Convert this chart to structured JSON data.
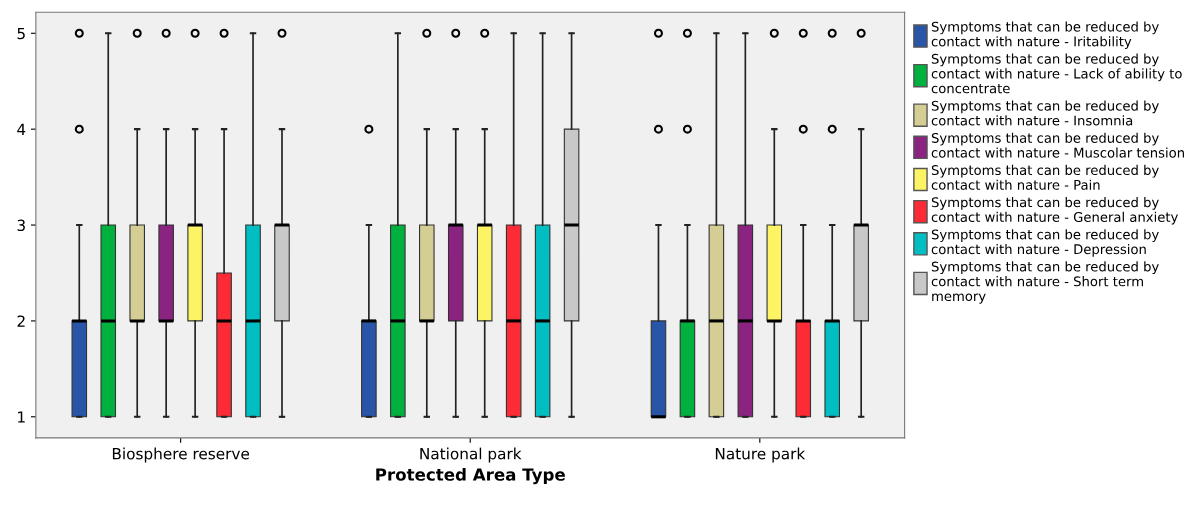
{
  "chart_data": {
    "type": "box",
    "xlabel": "Protected Area Type",
    "categories": [
      "Biosphere reserve",
      "National park",
      "Nature park"
    ],
    "ylim": [
      0.78,
      5.22
    ],
    "yticks": [
      1,
      2,
      3,
      4,
      5
    ],
    "grid": false,
    "legend": "right",
    "series": [
      {
        "name": "Symptoms that can be reduced by\ncontact with nature - Iritability",
        "color": "#2955a8",
        "boxes": [
          {
            "low": 1,
            "q1": 1,
            "median": 2,
            "q3": 2,
            "high": 3,
            "outliers": [
              4,
              5
            ]
          },
          {
            "low": 1,
            "q1": 1,
            "median": 2,
            "q3": 2,
            "high": 3,
            "outliers": [
              4
            ]
          },
          {
            "low": 1,
            "q1": 1,
            "median": 1,
            "q3": 2,
            "high": 3,
            "outliers": [
              4,
              5
            ]
          }
        ]
      },
      {
        "name": "Symptoms that can be reduced by\ncontact with nature - Lack of ability to\nconcentrate",
        "color": "#00b140",
        "boxes": [
          {
            "low": 1,
            "q1": 1,
            "median": 2,
            "q3": 3,
            "high": 5
          },
          {
            "low": 1,
            "q1": 1,
            "median": 2,
            "q3": 3,
            "high": 5
          },
          {
            "low": 1,
            "q1": 1,
            "median": 2,
            "q3": 2,
            "high": 3,
            "outliers": [
              4,
              5
            ]
          }
        ]
      },
      {
        "name": "Symptoms that can be reduced by\ncontact with nature - Insomnia",
        "color": "#d4ce94",
        "boxes": [
          {
            "low": 1,
            "q1": 2,
            "median": 2,
            "q3": 3,
            "high": 4,
            "outliers": [
              5
            ]
          },
          {
            "low": 1,
            "q1": 2,
            "median": 2,
            "q3": 3,
            "high": 4,
            "outliers": [
              5
            ]
          },
          {
            "low": 1,
            "q1": 1,
            "median": 2,
            "q3": 3,
            "high": 5
          }
        ]
      },
      {
        "name": "Symptoms that can be reduced by\ncontact with nature - Muscolar tension",
        "color": "#8a2480",
        "boxes": [
          {
            "low": 1,
            "q1": 2,
            "median": 2,
            "q3": 3,
            "high": 4,
            "outliers": [
              5
            ]
          },
          {
            "low": 1,
            "q1": 2,
            "median": 3,
            "q3": 3,
            "high": 4,
            "outliers": [
              5
            ]
          },
          {
            "low": 1,
            "q1": 1,
            "median": 2,
            "q3": 3,
            "high": 5
          }
        ]
      },
      {
        "name": "Symptoms that can be reduced by\ncontact with nature - Pain",
        "color": "#fcf465",
        "boxes": [
          {
            "low": 1,
            "q1": 2,
            "median": 3,
            "q3": 3,
            "high": 4,
            "outliers": [
              5
            ]
          },
          {
            "low": 1,
            "q1": 2,
            "median": 3,
            "q3": 3,
            "high": 4,
            "outliers": [
              5
            ]
          },
          {
            "low": 1,
            "q1": 2,
            "median": 2,
            "q3": 3,
            "high": 4,
            "outliers": [
              5
            ]
          }
        ]
      },
      {
        "name": "Symptoms that can be reduced by\ncontact with nature - General anxiety",
        "color": "#fc2b35",
        "boxes": [
          {
            "low": 1,
            "q1": 1,
            "median": 2,
            "q3": 2.5,
            "high": 4,
            "outliers": [
              5
            ]
          },
          {
            "low": 1,
            "q1": 1,
            "median": 2,
            "q3": 3,
            "high": 5
          },
          {
            "low": 1,
            "q1": 1,
            "median": 2,
            "q3": 2,
            "high": 3,
            "outliers": [
              4,
              5
            ]
          }
        ]
      },
      {
        "name": "Symptoms that can be reduced by\ncontact with nature - Depression",
        "color": "#00bec2",
        "boxes": [
          {
            "low": 1,
            "q1": 1,
            "median": 2,
            "q3": 3,
            "high": 5
          },
          {
            "low": 1,
            "q1": 1,
            "median": 2,
            "q3": 3,
            "high": 5
          },
          {
            "low": 1,
            "q1": 1,
            "median": 2,
            "q3": 2,
            "high": 3,
            "outliers": [
              4,
              5
            ]
          }
        ]
      },
      {
        "name": "Symptoms that can be reduced by\ncontact with nature - Short term\nmemory",
        "color": "#c8c8c8",
        "boxes": [
          {
            "low": 1,
            "q1": 2,
            "median": 3,
            "q3": 3,
            "high": 4,
            "outliers": [
              5
            ]
          },
          {
            "low": 1,
            "q1": 2,
            "median": 3,
            "q3": 4,
            "high": 5
          },
          {
            "low": 1,
            "q1": 2,
            "median": 3,
            "q3": 3,
            "high": 4,
            "outliers": [
              5
            ]
          }
        ]
      }
    ]
  }
}
